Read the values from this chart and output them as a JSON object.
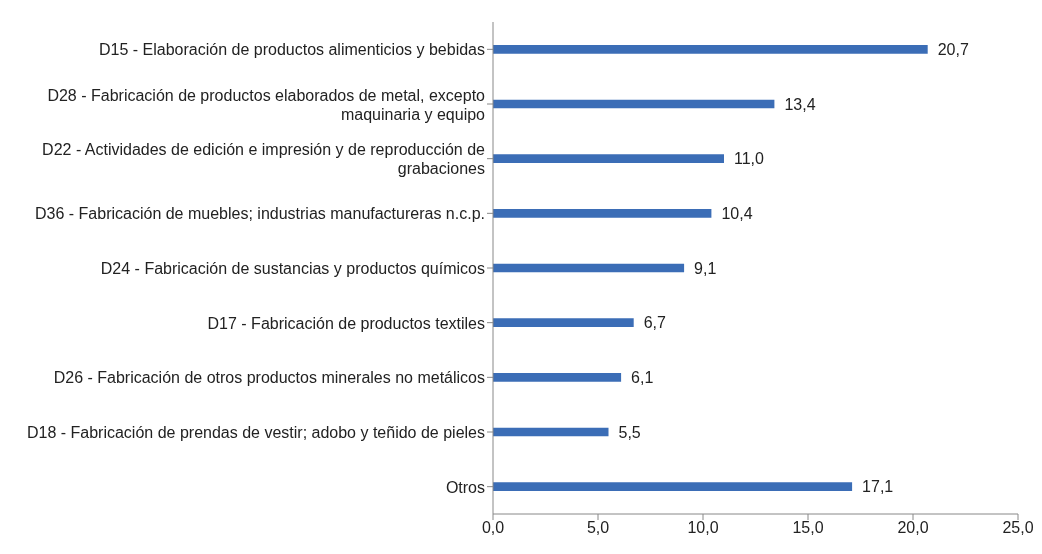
{
  "chart_data": {
    "type": "bar",
    "orientation": "horizontal",
    "categories": [
      "D15 - Elaboración de productos alimenticios y bebidas",
      "D28 - Fabricación de productos elaborados de metal, excepto maquinaria y equipo",
      "D22 - Actividades de edición e impresión y de reproducción de grabaciones",
      "D36 - Fabricación de muebles; industrias manufactureras n.c.p.",
      "D24 - Fabricación de sustancias y productos químicos",
      "D17 - Fabricación de productos textiles",
      "D26 - Fabricación de otros productos minerales no metálicos",
      "D18 - Fabricación de prendas de vestir; adobo y teñido de pieles",
      "Otros"
    ],
    "values": [
      20.7,
      13.4,
      11.0,
      10.4,
      9.1,
      6.7,
      6.1,
      5.5,
      17.1
    ],
    "value_labels": [
      "20,7",
      "13,4",
      "11,0",
      "10,4",
      "9,1",
      "6,7",
      "6,1",
      "5,5",
      "17,1"
    ],
    "color": "#3b6db6",
    "xlim": [
      0,
      25
    ],
    "xticks": [
      {
        "value": 0,
        "label": "0,0"
      },
      {
        "value": 5,
        "label": "5,0"
      },
      {
        "value": 10,
        "label": "10,0"
      },
      {
        "value": 15,
        "label": "15,0"
      },
      {
        "value": 20,
        "label": "20,0"
      },
      {
        "value": 25,
        "label": "25,0"
      }
    ]
  }
}
